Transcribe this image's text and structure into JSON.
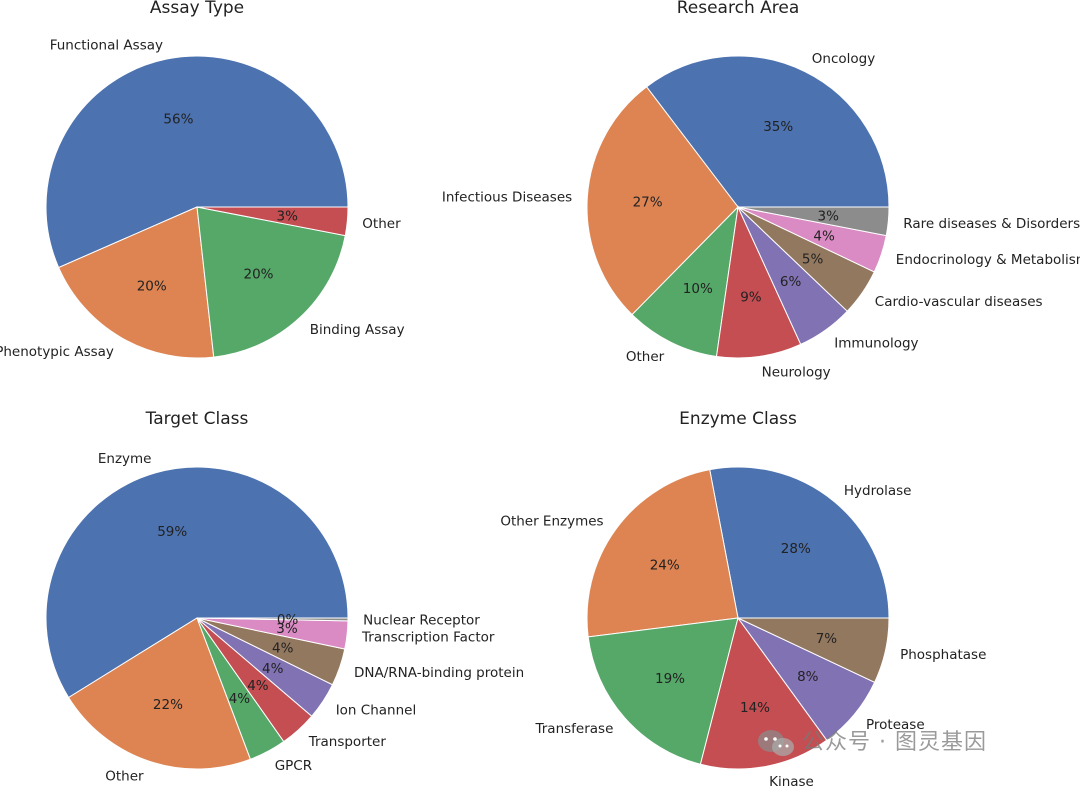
{
  "chart_data": [
    {
      "type": "pie",
      "title": "Assay Type",
      "slices": [
        {
          "label": "Functional Assay",
          "value": 56,
          "pct_label": "56%",
          "color": "#4c72b0"
        },
        {
          "label": "Phenotypic Assay",
          "value": 20,
          "pct_label": "20%",
          "color": "#dd8452"
        },
        {
          "label": "Binding Assay",
          "value": 20,
          "pct_label": "20%",
          "color": "#55a868"
        },
        {
          "label": "Other",
          "value": 3,
          "pct_label": "3%",
          "color": "#c44e52"
        }
      ]
    },
    {
      "type": "pie",
      "title": "Research Area",
      "slices": [
        {
          "label": "Oncology",
          "value": 35,
          "pct_label": "35%",
          "color": "#4c72b0"
        },
        {
          "label": "Infectious Diseases",
          "value": 27,
          "pct_label": "27%",
          "color": "#dd8452"
        },
        {
          "label": "Other",
          "value": 10,
          "pct_label": "10%",
          "color": "#55a868"
        },
        {
          "label": "Neurology",
          "value": 9,
          "pct_label": "9%",
          "color": "#c44e52"
        },
        {
          "label": "Immunology",
          "value": 6,
          "pct_label": "6%",
          "color": "#8172b3"
        },
        {
          "label": "Cardio-vascular diseases",
          "value": 5,
          "pct_label": "5%",
          "color": "#937860"
        },
        {
          "label": "Endocrinology & Metabolism",
          "value": 4,
          "pct_label": "4%",
          "color": "#da8bc3"
        },
        {
          "label": "Rare diseases & Disorders",
          "value": 3,
          "pct_label": "3%",
          "color": "#8c8c8c"
        }
      ]
    },
    {
      "type": "pie",
      "title": "Target Class",
      "slices": [
        {
          "label": "Enzyme",
          "value": 59,
          "pct_label": "59%",
          "color": "#4c72b0"
        },
        {
          "label": "Other",
          "value": 22,
          "pct_label": "22%",
          "color": "#dd8452"
        },
        {
          "label": "GPCR",
          "value": 4,
          "pct_label": "4%",
          "color": "#55a868"
        },
        {
          "label": "Transporter",
          "value": 4,
          "pct_label": "4%",
          "color": "#c44e52"
        },
        {
          "label": "Ion Channel",
          "value": 4,
          "pct_label": "4%",
          "color": "#8172b3"
        },
        {
          "label": "DNA/RNA-binding protein",
          "value": 4,
          "pct_label": "4%",
          "color": "#937860"
        },
        {
          "label": "Transcription Factor",
          "value": 3,
          "pct_label": "3%",
          "color": "#da8bc3"
        },
        {
          "label": "Nuclear Receptor",
          "value": 0.3,
          "pct_label": "0%",
          "color": "#8c8c8c"
        }
      ]
    },
    {
      "type": "pie",
      "title": "Enzyme Class",
      "slices": [
        {
          "label": "Hydrolase",
          "value": 28,
          "pct_label": "28%",
          "color": "#4c72b0"
        },
        {
          "label": "Other Enzymes",
          "value": 24,
          "pct_label": "24%",
          "color": "#dd8452"
        },
        {
          "label": "Transferase",
          "value": 19,
          "pct_label": "19%",
          "color": "#55a868"
        },
        {
          "label": "Kinase",
          "value": 14,
          "pct_label": "14%",
          "color": "#c44e52"
        },
        {
          "label": "Protease",
          "value": 8,
          "pct_label": "8%",
          "color": "#8172b3"
        },
        {
          "label": "Phosphatase",
          "value": 7,
          "pct_label": "7%",
          "color": "#937860"
        }
      ]
    }
  ],
  "watermark": "公众号 · 图灵基因"
}
